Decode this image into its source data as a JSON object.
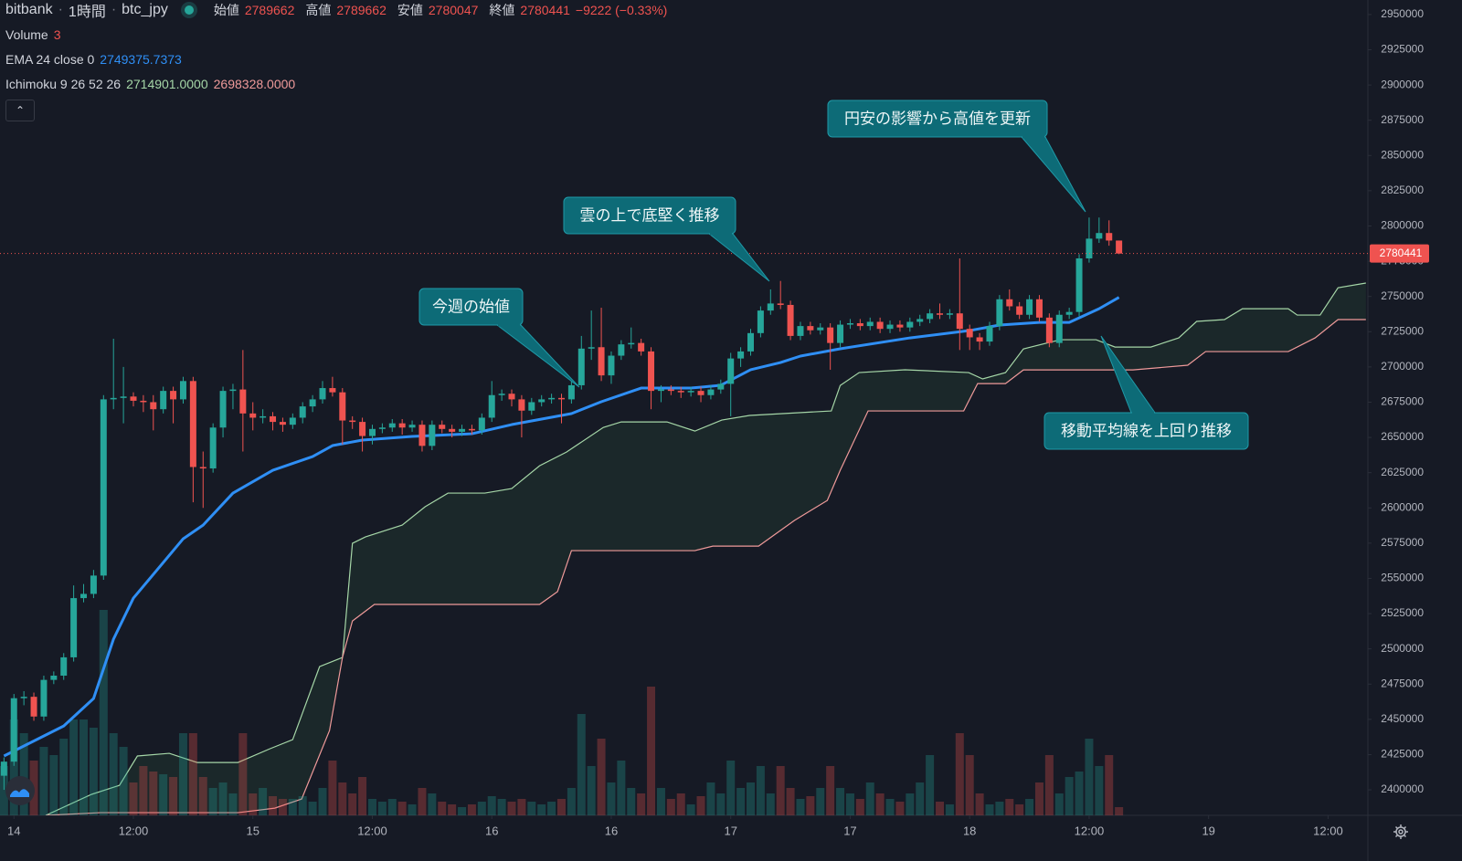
{
  "chart_data": {
    "type": "candlestick",
    "header": {
      "exchange": "bitbank",
      "interval": "1時間",
      "symbol": "btc_jpy",
      "open_label": "始値",
      "high_label": "高値",
      "low_label": "安値",
      "close_label": "終値",
      "change": "−9222 (−0.33%)"
    },
    "up_color": "#26a69a",
    "down_color": "#ef5350",
    "grid": false,
    "xlim": [
      -0.4,
      137
    ],
    "ylim": [
      2381900,
      2960300
    ],
    "xticks": [
      {
        "value": 1,
        "label": "14"
      },
      {
        "value": 13,
        "label": "12:00"
      },
      {
        "value": 25,
        "label": "15"
      },
      {
        "value": 37,
        "label": "12:00"
      },
      {
        "value": 49,
        "label": "16"
      },
      {
        "value": 61,
        "label": "16"
      },
      {
        "value": 73,
        "label": "17"
      },
      {
        "value": 85,
        "label": "17"
      },
      {
        "value": 97,
        "label": "18"
      },
      {
        "value": 109,
        "label": "12:00"
      },
      {
        "value": 121,
        "label": "19"
      },
      {
        "value": 133,
        "label": "12:00"
      }
    ],
    "yticks": [
      2400000,
      2425000,
      2450000,
      2475000,
      2500000,
      2525000,
      2550000,
      2575000,
      2600000,
      2625000,
      2650000,
      2675000,
      2700000,
      2725000,
      2750000,
      2775000,
      2800000,
      2825000,
      2850000,
      2875000,
      2900000,
      2925000,
      2950000
    ],
    "candles": [
      [
        2410000,
        2423000,
        2400000,
        2420000
      ],
      [
        2420000,
        2468000,
        2417000,
        2465000
      ],
      [
        2465000,
        2470000,
        2460000,
        2466000
      ],
      [
        2466000,
        2469000,
        2449000,
        2452000
      ],
      [
        2452000,
        2481000,
        2449000,
        2478000
      ],
      [
        2478000,
        2484000,
        2475000,
        2481000
      ],
      [
        2481000,
        2497000,
        2478000,
        2494000
      ],
      [
        2494000,
        2545000,
        2491000,
        2536000
      ],
      [
        2536000,
        2546000,
        2533000,
        2539000
      ],
      [
        2539000,
        2556000,
        2536000,
        2552000
      ],
      [
        2552000,
        2680000,
        2549000,
        2677000
      ],
      [
        2677000,
        2720000,
        2670000,
        2678000
      ],
      [
        2678000,
        2700000,
        2660000,
        2679000
      ],
      [
        2679000,
        2682000,
        2672000,
        2676000
      ],
      [
        2676000,
        2680000,
        2668000,
        2675000
      ],
      [
        2675000,
        2680000,
        2655000,
        2670000
      ],
      [
        2670000,
        2686000,
        2667000,
        2683000
      ],
      [
        2683000,
        2686000,
        2660000,
        2677000
      ],
      [
        2677000,
        2693000,
        2674000,
        2690000
      ],
      [
        2690000,
        2693000,
        2604000,
        2629000
      ],
      [
        2629000,
        2640000,
        2600000,
        2628000
      ],
      [
        2628000,
        2660000,
        2625000,
        2657000
      ],
      [
        2657000,
        2686000,
        2650000,
        2683000
      ],
      [
        2683000,
        2688000,
        2670000,
        2684000
      ],
      [
        2684000,
        2712000,
        2640000,
        2667000
      ],
      [
        2667000,
        2675000,
        2655000,
        2664000
      ],
      [
        2664000,
        2670000,
        2660000,
        2665000
      ],
      [
        2665000,
        2668000,
        2655000,
        2661000
      ],
      [
        2661000,
        2664000,
        2654000,
        2659000
      ],
      [
        2659000,
        2667000,
        2656000,
        2664000
      ],
      [
        2664000,
        2675000,
        2660000,
        2672000
      ],
      [
        2672000,
        2680000,
        2668000,
        2677000
      ],
      [
        2677000,
        2690000,
        2674000,
        2685000
      ],
      [
        2685000,
        2693000,
        2679000,
        2682000
      ],
      [
        2682000,
        2685000,
        2645000,
        2662000
      ],
      [
        2662000,
        2665000,
        2656000,
        2661000
      ],
      [
        2661000,
        2664000,
        2640000,
        2651000
      ],
      [
        2651000,
        2659000,
        2645000,
        2656000
      ],
      [
        2656000,
        2660000,
        2653000,
        2657000
      ],
      [
        2657000,
        2663000,
        2654000,
        2660000
      ],
      [
        2660000,
        2663000,
        2652000,
        2657000
      ],
      [
        2657000,
        2662000,
        2654000,
        2659000
      ],
      [
        2659000,
        2662000,
        2640000,
        2644000
      ],
      [
        2644000,
        2662000,
        2641000,
        2659000
      ],
      [
        2659000,
        2662000,
        2653000,
        2656000
      ],
      [
        2656000,
        2659000,
        2650000,
        2654000
      ],
      [
        2654000,
        2659000,
        2651000,
        2656000
      ],
      [
        2656000,
        2659000,
        2652000,
        2655000
      ],
      [
        2655000,
        2667000,
        2652000,
        2664000
      ],
      [
        2664000,
        2690000,
        2661000,
        2680000
      ],
      [
        2680000,
        2684000,
        2676000,
        2681000
      ],
      [
        2681000,
        2684000,
        2672000,
        2677000
      ],
      [
        2677000,
        2680000,
        2650000,
        2669000
      ],
      [
        2669000,
        2678000,
        2666000,
        2675000
      ],
      [
        2675000,
        2680000,
        2672000,
        2677000
      ],
      [
        2677000,
        2681000,
        2674000,
        2678000
      ],
      [
        2678000,
        2681000,
        2660000,
        2677000
      ],
      [
        2677000,
        2690000,
        2674000,
        2687000
      ],
      [
        2687000,
        2722000,
        2684000,
        2713000
      ],
      [
        2713000,
        2740000,
        2705000,
        2714000
      ],
      [
        2714000,
        2742000,
        2690000,
        2694000
      ],
      [
        2694000,
        2711000,
        2688000,
        2708000
      ],
      [
        2708000,
        2719000,
        2705000,
        2716000
      ],
      [
        2716000,
        2728000,
        2713000,
        2717000
      ],
      [
        2717000,
        2720000,
        2708000,
        2711000
      ],
      [
        2711000,
        2714000,
        2670000,
        2683000
      ],
      [
        2683000,
        2687000,
        2675000,
        2684000
      ],
      [
        2684000,
        2687000,
        2680000,
        2683000
      ],
      [
        2683000,
        2686000,
        2678000,
        2682000
      ],
      [
        2682000,
        2686000,
        2679000,
        2683000
      ],
      [
        2683000,
        2686000,
        2675000,
        2680000
      ],
      [
        2680000,
        2687000,
        2677000,
        2684000
      ],
      [
        2684000,
        2691000,
        2681000,
        2688000
      ],
      [
        2688000,
        2710000,
        2665000,
        2706000
      ],
      [
        2706000,
        2714000,
        2700000,
        2711000
      ],
      [
        2711000,
        2727000,
        2708000,
        2724000
      ],
      [
        2724000,
        2743000,
        2721000,
        2740000
      ],
      [
        2740000,
        2755000,
        2737000,
        2745000
      ],
      [
        2745000,
        2761000,
        2741000,
        2744000
      ],
      [
        2744000,
        2747000,
        2719000,
        2722000
      ],
      [
        2722000,
        2732000,
        2719000,
        2729000
      ],
      [
        2729000,
        2732000,
        2723000,
        2726000
      ],
      [
        2726000,
        2731000,
        2723000,
        2728000
      ],
      [
        2728000,
        2731000,
        2698000,
        2717000
      ],
      [
        2717000,
        2733000,
        2714000,
        2730000
      ],
      [
        2730000,
        2734000,
        2727000,
        2731000
      ],
      [
        2731000,
        2734000,
        2726000,
        2729000
      ],
      [
        2729000,
        2735000,
        2726000,
        2732000
      ],
      [
        2732000,
        2735000,
        2724000,
        2727000
      ],
      [
        2727000,
        2733000,
        2724000,
        2730000
      ],
      [
        2730000,
        2733000,
        2725000,
        2728000
      ],
      [
        2728000,
        2735000,
        2725000,
        2732000
      ],
      [
        2732000,
        2737000,
        2729000,
        2734000
      ],
      [
        2734000,
        2741000,
        2731000,
        2738000
      ],
      [
        2738000,
        2745000,
        2734000,
        2737000
      ],
      [
        2737000,
        2741000,
        2734000,
        2738000
      ],
      [
        2738000,
        2777000,
        2712000,
        2727000
      ],
      [
        2727000,
        2730000,
        2712000,
        2721000
      ],
      [
        2721000,
        2724000,
        2712000,
        2718000
      ],
      [
        2718000,
        2732000,
        2715000,
        2729000
      ],
      [
        2729000,
        2751000,
        2726000,
        2748000
      ],
      [
        2748000,
        2755000,
        2740000,
        2743000
      ],
      [
        2743000,
        2746000,
        2734000,
        2737000
      ],
      [
        2737000,
        2751000,
        2734000,
        2748000
      ],
      [
        2748000,
        2751000,
        2732000,
        2735000
      ],
      [
        2735000,
        2738000,
        2714000,
        2717000
      ],
      [
        2717000,
        2740000,
        2714000,
        2737000
      ],
      [
        2737000,
        2742000,
        2734000,
        2739000
      ],
      [
        2739000,
        2780000,
        2736000,
        2777000
      ],
      [
        2777000,
        2806000,
        2774000,
        2791000
      ],
      [
        2791000,
        2806000,
        2788000,
        2795000
      ],
      [
        2795000,
        2804000,
        2786000,
        2789662
      ],
      [
        2789662,
        2789662,
        2780047,
        2780441
      ]
    ],
    "volume": {
      "name": "Volume",
      "values": [
        18,
        35,
        30,
        20,
        25,
        22,
        28,
        35,
        35,
        32,
        75,
        30,
        25,
        12,
        18,
        16,
        15,
        14,
        30,
        30,
        14,
        10,
        12,
        8,
        30,
        8,
        10,
        7,
        6,
        6,
        7,
        5,
        10,
        20,
        12,
        8,
        14,
        6,
        5,
        6,
        5,
        4,
        10,
        8,
        5,
        4,
        3,
        4,
        5,
        7,
        6,
        5,
        6,
        5,
        4,
        5,
        6,
        10,
        37,
        18,
        28,
        12,
        20,
        10,
        8,
        47,
        10,
        6,
        8,
        4,
        7,
        12,
        8,
        20,
        10,
        12,
        18,
        8,
        18,
        10,
        6,
        7,
        10,
        18,
        10,
        8,
        6,
        12,
        8,
        6,
        5,
        8,
        12,
        22,
        5,
        4,
        30,
        22,
        8,
        4,
        5,
        6,
        4,
        6,
        12,
        22,
        8,
        14,
        16,
        28,
        18,
        22,
        3
      ]
    },
    "ema": {
      "name": "EMA 24 close 0",
      "color": "#2f8ff5",
      "x": [
        0,
        6,
        9,
        11,
        13,
        18,
        20,
        23,
        27,
        31,
        33,
        36,
        41,
        47,
        51,
        57,
        60,
        64,
        69,
        72,
        75,
        78,
        80,
        84,
        91,
        97,
        100,
        104,
        107,
        110,
        112
      ],
      "values": [
        2424000,
        2445300,
        2464800,
        2506900,
        2536000,
        2578100,
        2587800,
        2610500,
        2626700,
        2636400,
        2644200,
        2648100,
        2650700,
        2652600,
        2659100,
        2666900,
        2675300,
        2685000,
        2685000,
        2687000,
        2698000,
        2703100,
        2707700,
        2712900,
        2720600,
        2725800,
        2729700,
        2731600,
        2731600,
        2741300,
        2749375.7373
      ]
    },
    "ichimoku": {
      "name": "Ichimoku 9 26 52 26",
      "legend_values": [
        "2714901.0000",
        "2698328.0000"
      ],
      "cloud_color": "rgba(56,120,70,0.16)",
      "span_a": {
        "color": "#a5d6a7",
        "x": [
          4.2,
          8.8,
          11.6,
          13.4,
          16.6,
          19.4,
          23.5,
          26.7,
          29.0,
          31.7,
          34.0,
          35.0,
          36.3,
          40.0,
          42.3,
          44.6,
          48.3,
          51.0,
          53.8,
          56.5,
          60.2,
          62.0,
          66.6,
          69.4,
          72.1,
          74.9,
          83.1,
          84.0,
          85.9,
          90.5,
          96.9,
          98.3,
          100.6,
          102.4,
          106.1,
          109.7,
          111.6,
          115.2,
          118.0,
          119.8,
          122.6,
          124.4,
          129.0,
          129.9,
          132.2,
          134.0,
          136.8
        ],
        "values": [
          2381900,
          2396800,
          2403200,
          2424000,
          2425900,
          2419400,
          2419400,
          2429100,
          2435600,
          2487400,
          2493900,
          2574900,
          2579400,
          2587800,
          2600800,
          2610500,
          2610500,
          2613700,
          2629900,
          2639600,
          2657100,
          2661000,
          2661000,
          2654500,
          2662300,
          2665600,
          2668800,
          2686900,
          2696000,
          2698000,
          2696000,
          2691500,
          2696000,
          2712800,
          2719300,
          2719300,
          2714100,
          2714100,
          2720600,
          2732300,
          2733600,
          2741300,
          2741300,
          2736800,
          2736800,
          2756200,
          2759500
        ]
      },
      "span_b": {
        "color": "#ef9a9a",
        "x": [
          4.2,
          9.7,
          23.5,
          27.2,
          29.9,
          32.7,
          34.0,
          35.0,
          37.2,
          53.8,
          55.6,
          57.0,
          69.4,
          71.2,
          75.8,
          79.4,
          82.7,
          84.0,
          86.8,
          96.4,
          97.8,
          100.6,
          102.4,
          113.4,
          118.9,
          120.7,
          129.0,
          131.7,
          134.0,
          136.8
        ],
        "values": [
          2381900,
          2383800,
          2383800,
          2387000,
          2393500,
          2442100,
          2493900,
          2519800,
          2531500,
          2531500,
          2540600,
          2569700,
          2569700,
          2572900,
          2572900,
          2591100,
          2605300,
          2626700,
          2668800,
          2668800,
          2688200,
          2688200,
          2697900,
          2697900,
          2701200,
          2710900,
          2710900,
          2720600,
          2733600,
          2733600
        ]
      }
    },
    "annotations": [
      {
        "text": "円安の影響から高値を更新"
      },
      {
        "text": "雲の上で底堅く推移"
      },
      {
        "text": "今週の始値"
      },
      {
        "text": "移動平均線を上回り推移"
      }
    ]
  }
}
